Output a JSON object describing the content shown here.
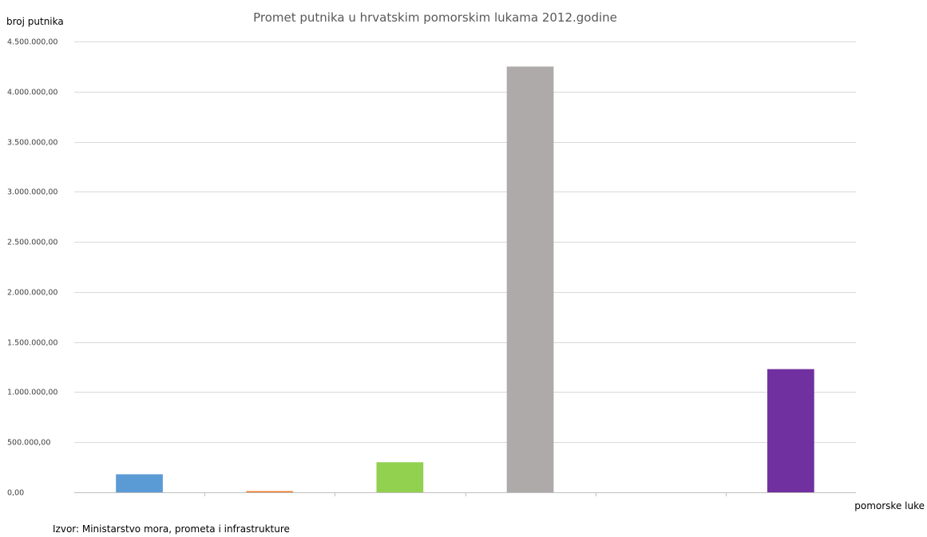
{
  "chart_data": {
    "type": "bar",
    "title": "Promet putnika u hrvatskim pomorskim lukama 2012.godine",
    "ylabel": "broj putnika",
    "xlabel": "pomorske luke",
    "ylim": [
      0,
      4500000
    ],
    "yticks": [
      0,
      500000,
      1000000,
      1500000,
      2000000,
      2500000,
      3000000,
      3500000,
      4000000,
      4500000
    ],
    "ytick_labels": [
      "0,00",
      "500.000,00",
      "1.000.000,00",
      "1.500.000,00",
      "2.000.000,00",
      "2.500.000,00",
      "3.000.000,00",
      "3.500.000,00",
      "4.000.000,00",
      "4.500.000,00"
    ],
    "grid": true,
    "values": [
      180000,
      12000,
      300000,
      4250000,
      0,
      1230000
    ],
    "colors": [
      "#5b9bd5",
      "#ed7d31",
      "#92d050",
      "#aeaaaa",
      "#ffc000",
      "#7030a0"
    ]
  },
  "source": "Izvor: Ministarstvo mora, prometa i infrastrukture"
}
